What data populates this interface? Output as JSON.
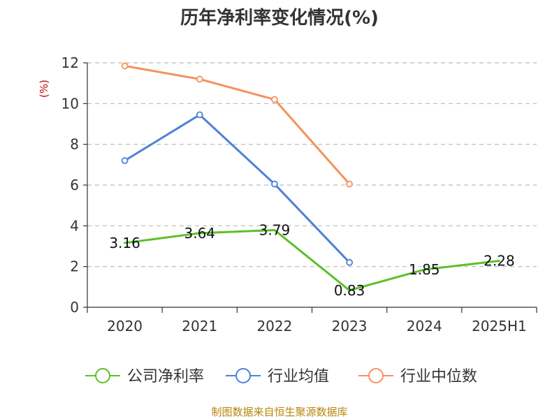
{
  "chart_data": {
    "type": "line",
    "title": "历年净利率变化情况(%)",
    "ylabel": "(%)",
    "xlabel": "",
    "categories": [
      "2020",
      "2021",
      "2022",
      "2023",
      "2024",
      "2025H1"
    ],
    "ylim": [
      0,
      12
    ],
    "yticks": [
      0,
      2,
      4,
      6,
      8,
      10,
      12
    ],
    "grid": true,
    "legend_position": "bottom",
    "series": [
      {
        "name": "公司净利率",
        "color": "#5cc02a",
        "values": [
          3.16,
          3.64,
          3.79,
          0.83,
          1.85,
          2.28
        ],
        "labels": [
          "3.16",
          "3.64",
          "3.79",
          "0.83",
          "1.85",
          "2.28"
        ],
        "show_markers": false
      },
      {
        "name": "行业均值",
        "color": "#4f80d8",
        "values": [
          7.2,
          9.45,
          6.05,
          2.2,
          null,
          null
        ],
        "show_markers": true
      },
      {
        "name": "行业中位数",
        "color": "#f4915e",
        "values": [
          11.85,
          11.2,
          10.2,
          6.05,
          null,
          null
        ],
        "show_markers": true
      }
    ],
    "source": "制图数据来自恒生聚源数据库"
  }
}
